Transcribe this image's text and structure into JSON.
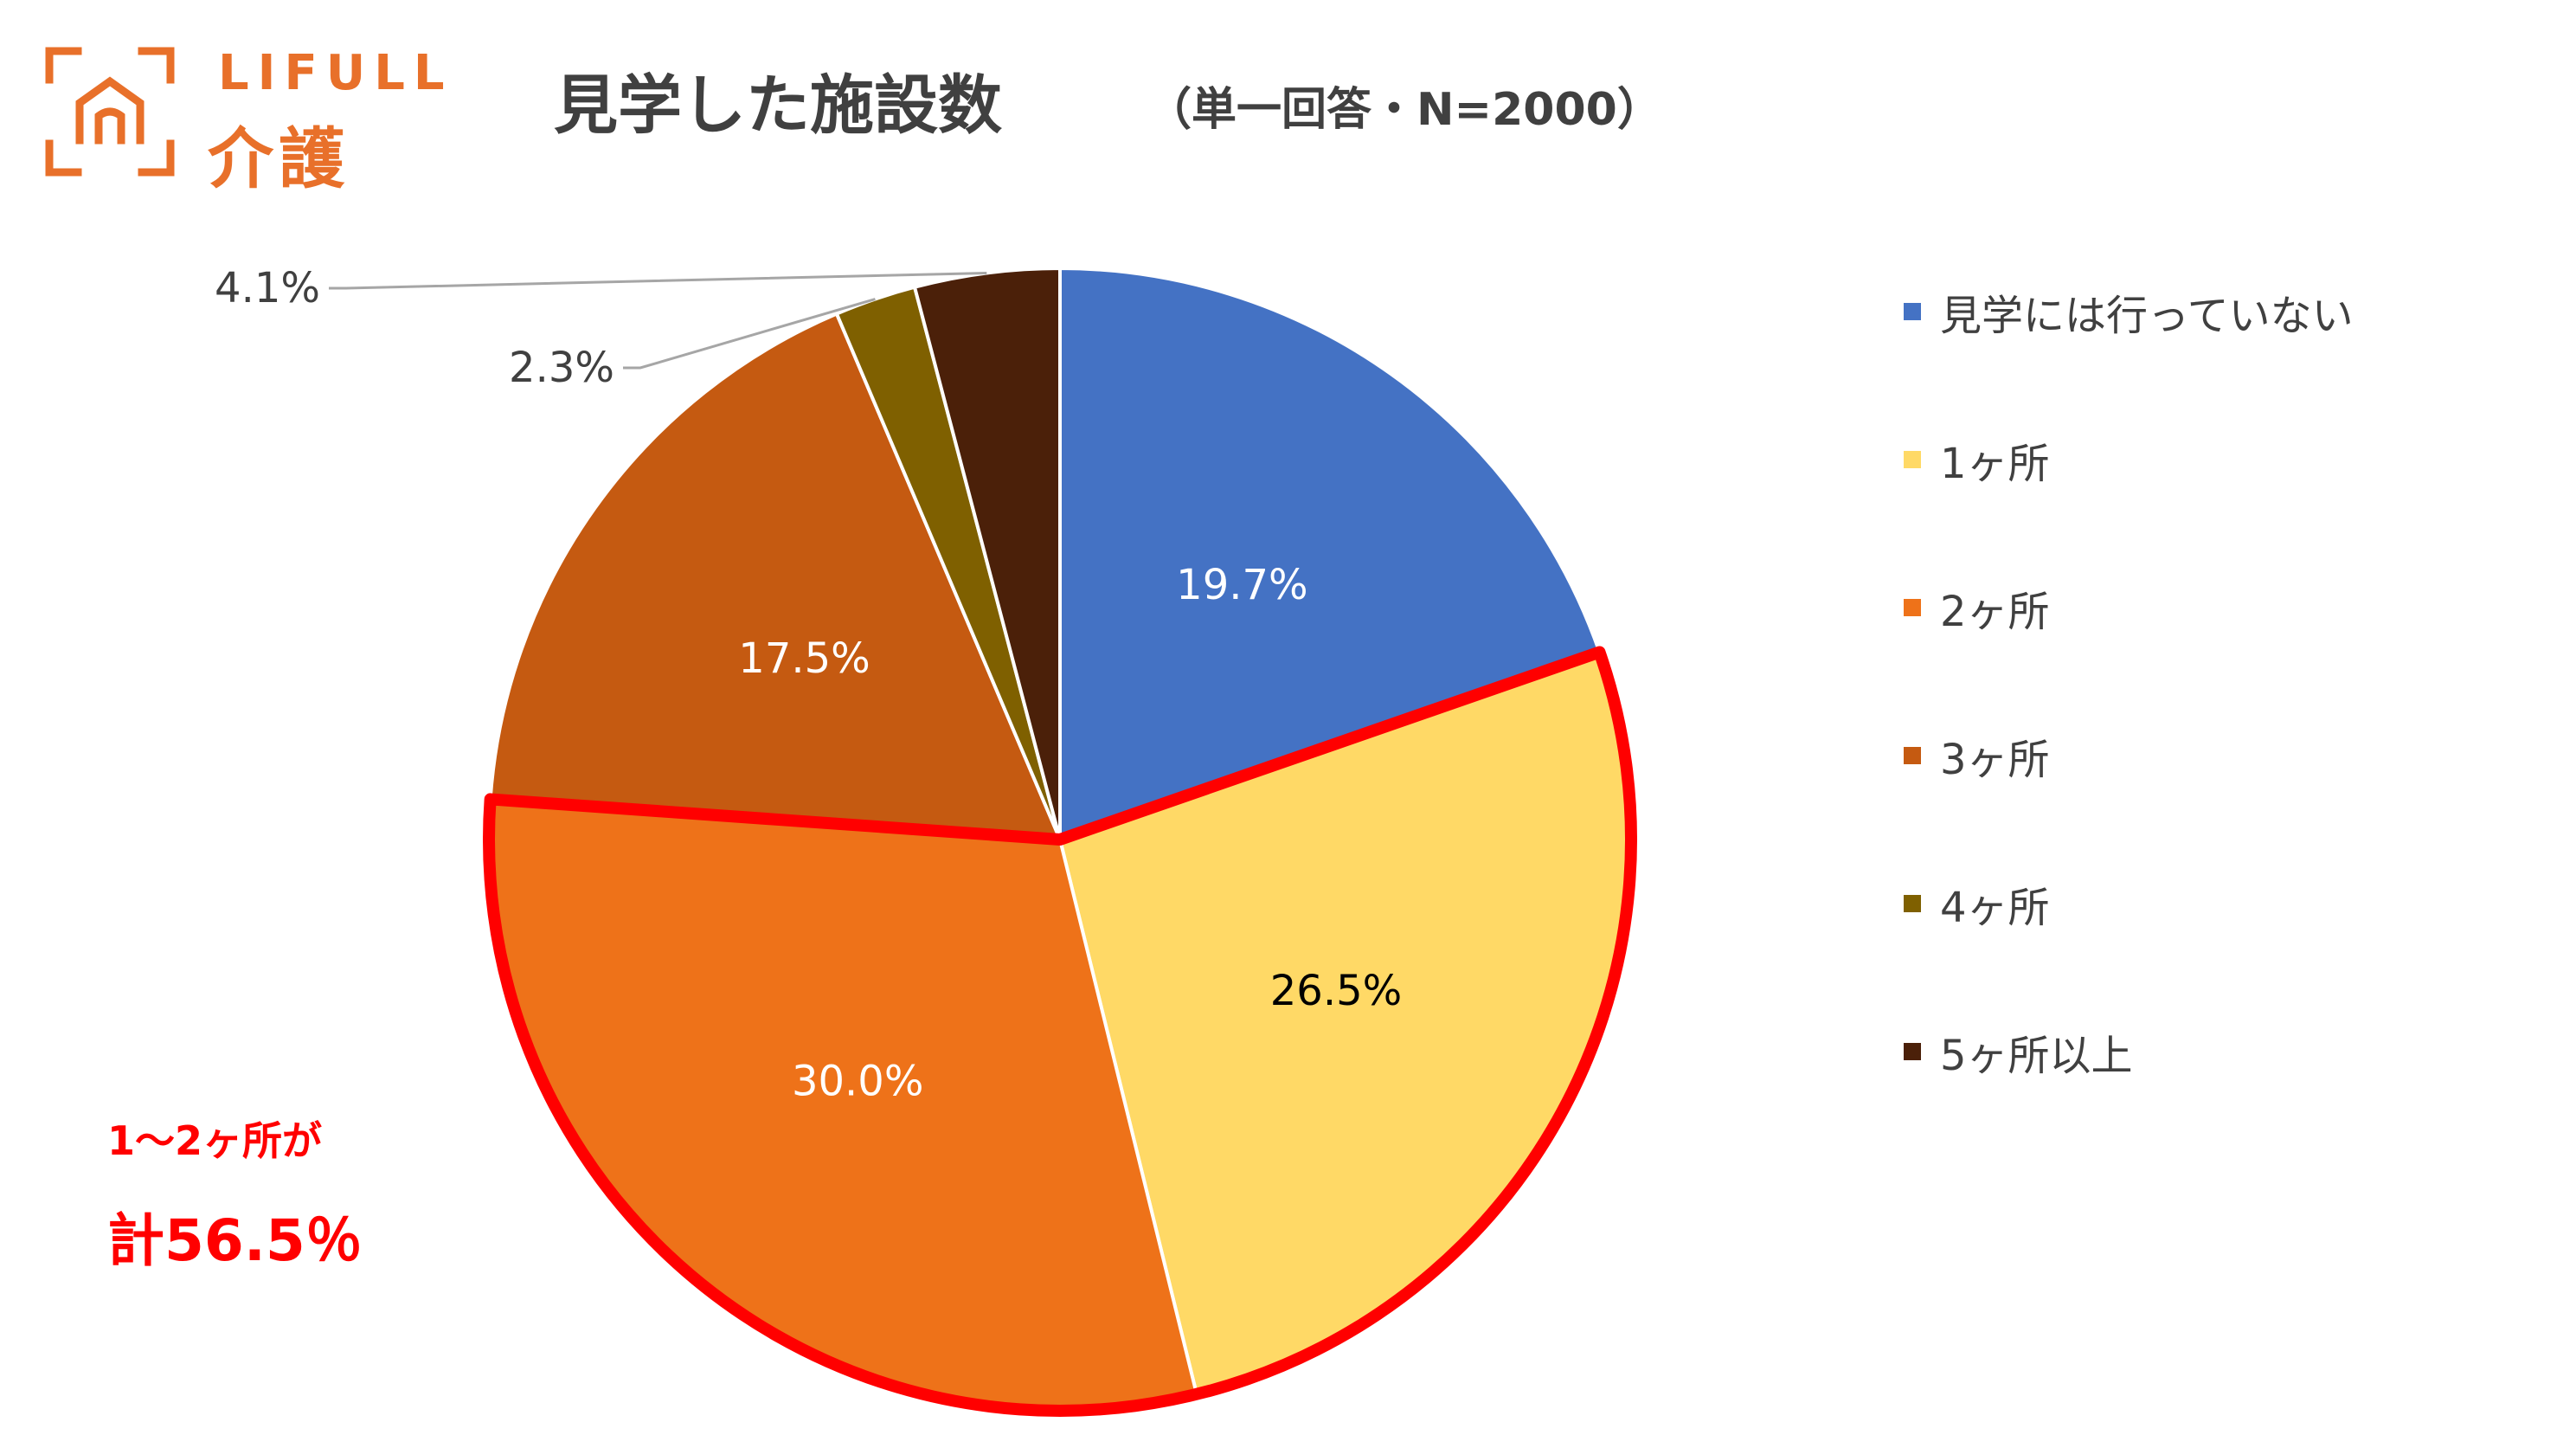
{
  "logo": {
    "brand": "LIFULL",
    "sub": "介護",
    "icon": "house-bracket-icon",
    "color": "#e8702a"
  },
  "header": {
    "title": "見学した施設数",
    "subtitle": "（単一回答・N=2000）"
  },
  "chart_data": {
    "type": "pie",
    "title": "見学した施設数",
    "categories": [
      "見学には行っていない",
      "1ヶ所",
      "2ヶ所",
      "3ヶ所",
      "4ヶ所",
      "5ヶ所以上"
    ],
    "values": [
      19.7,
      26.5,
      30.0,
      17.5,
      2.3,
      4.1
    ],
    "labels": [
      "19.7%",
      "26.5%",
      "30.0%",
      "17.5%",
      "2.3%",
      "4.1%"
    ],
    "colors": [
      "#4472c4",
      "#ffd966",
      "#ee7219",
      "#c55a11",
      "#7f6000",
      "#4b2009"
    ],
    "label_colors": [
      "#ffffff",
      "#000000",
      "#ffffff",
      "#ffffff",
      "#404040",
      "#404040"
    ],
    "legend_position": "right",
    "highlight_color": "#ff0000"
  },
  "annotation": {
    "line1": "1〜2ヶ所が",
    "line2": "計56.5％"
  }
}
